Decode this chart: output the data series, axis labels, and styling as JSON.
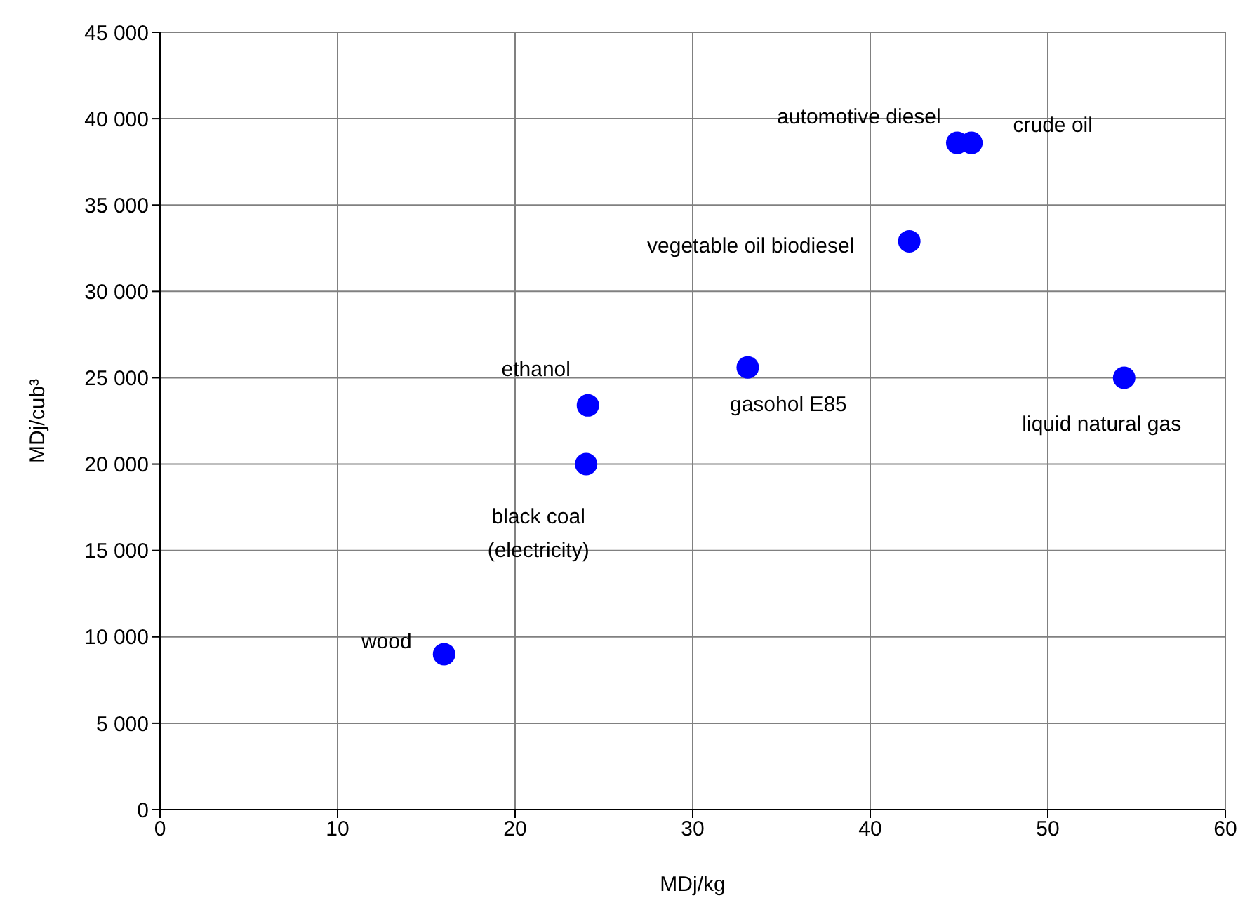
{
  "chart_data": {
    "type": "scatter",
    "xlabel": "MDj/kg",
    "ylabel": "MDj/cub³",
    "series": [
      {
        "color": "#0000ff",
        "x": [
          44.9,
          45.7,
          42.2,
          24.1,
          33.1,
          54.3,
          24,
          16
        ],
        "values": [
          38600,
          38600,
          32900,
          23400,
          25600,
          25000,
          20000,
          9000
        ]
      }
    ],
    "xlim": [
      0,
      60
    ],
    "xticks": [
      0,
      10,
      20,
      30,
      40,
      50,
      60
    ],
    "ylim": [
      0,
      45000
    ],
    "yticks": [
      {
        "value": 0,
        "label": "0"
      },
      {
        "value": 5000,
        "label": "5 000"
      },
      {
        "value": 10000,
        "label": "10 000"
      },
      {
        "value": 15000,
        "label": "15 000"
      },
      {
        "value": 20000,
        "label": "20 000"
      },
      {
        "value": 25000,
        "label": "25 000"
      },
      {
        "value": 30000,
        "label": "30 000"
      },
      {
        "value": 35000,
        "label": "35 000"
      },
      {
        "value": 40000,
        "label": "40 000"
      },
      {
        "value": 45000,
        "label": "45 000"
      }
    ],
    "grid": true,
    "marker": "circle",
    "legend": false,
    "annotations": [
      {
        "text": "automotive diesel",
        "x": 44.9,
        "y": 38600
      },
      {
        "text": "crude oil",
        "x": 45.7,
        "y": 38600
      },
      {
        "text": "vegetable oil biodiesel",
        "x": 42.2,
        "y": 32900
      },
      {
        "text": "ethanol",
        "x": 24.1,
        "y": 23400
      },
      {
        "text": "gasohol E85",
        "x": 33.1,
        "y": 25600
      },
      {
        "text": "liquid natural gas",
        "x": 54.3,
        "y": 25000
      },
      {
        "text": "black coal\n(electricity)",
        "x": 24,
        "y": 20000
      },
      {
        "text": "wood",
        "x": 16,
        "y": 9000
      }
    ]
  }
}
